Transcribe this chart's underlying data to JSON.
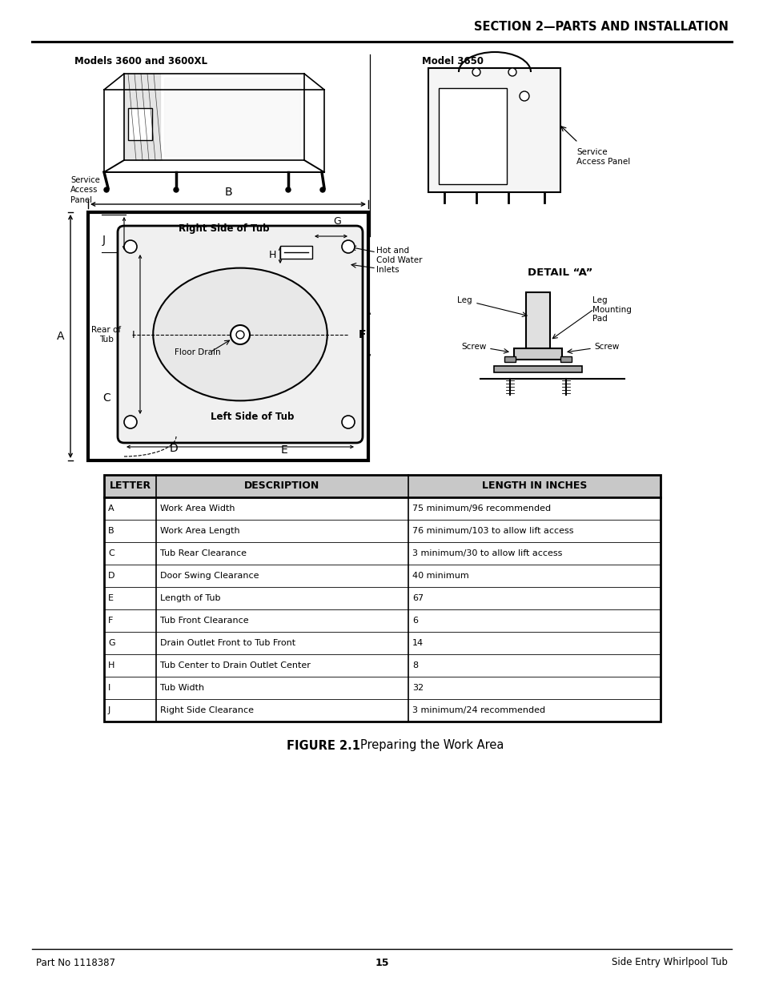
{
  "page_title": "SECTION 2—PARTS AND INSTALLATION",
  "figure_caption_bold": "FIGURE 2.1",
  "figure_caption_rest": "  Preparing the Work Area",
  "footer_left": "Part No 1118387",
  "footer_center": "15",
  "footer_right": "Side Entry Whirlpool Tub",
  "diagram_left_label": "Models 3600 and 3600XL",
  "diagram_right_label": "Model 3650",
  "detail_label": "DETAIL “A”",
  "service_panel_left": "Service\nAccess\nPanel",
  "service_panel_right": "Service\nAccess Panel",
  "tub_label_right": "Right Side of Tub",
  "tub_label_left": "Left Side of Tub",
  "tub_label_rear": "Rear of\nTub",
  "floor_drain_label": "Floor Drain",
  "hot_cold_label": "Hot and\nCold Water\nInlets",
  "table_headers": [
    "LETTER",
    "DESCRIPTION",
    "LENGTH IN INCHES"
  ],
  "table_data": [
    [
      "A",
      "Work Area Width",
      "75 minimum/96 recommended"
    ],
    [
      "B",
      "Work Area Length",
      "76 minimum/103 to allow lift access"
    ],
    [
      "C",
      "Tub Rear Clearance",
      "3 minimum/30 to allow lift access"
    ],
    [
      "D",
      "Door Swing Clearance",
      "40 minimum"
    ],
    [
      "E",
      "Length of Tub",
      "67"
    ],
    [
      "F",
      "Tub Front Clearance",
      "6"
    ],
    [
      "G",
      "Drain Outlet Front to Tub Front",
      "14"
    ],
    [
      "H",
      "Tub Center to Drain Outlet Center",
      "8"
    ],
    [
      "I",
      "Tub Width",
      "32"
    ],
    [
      "J",
      "Right Side Clearance",
      "3 minimum/24 recommended"
    ]
  ],
  "bg_color": "#ffffff",
  "text_color": "#000000"
}
